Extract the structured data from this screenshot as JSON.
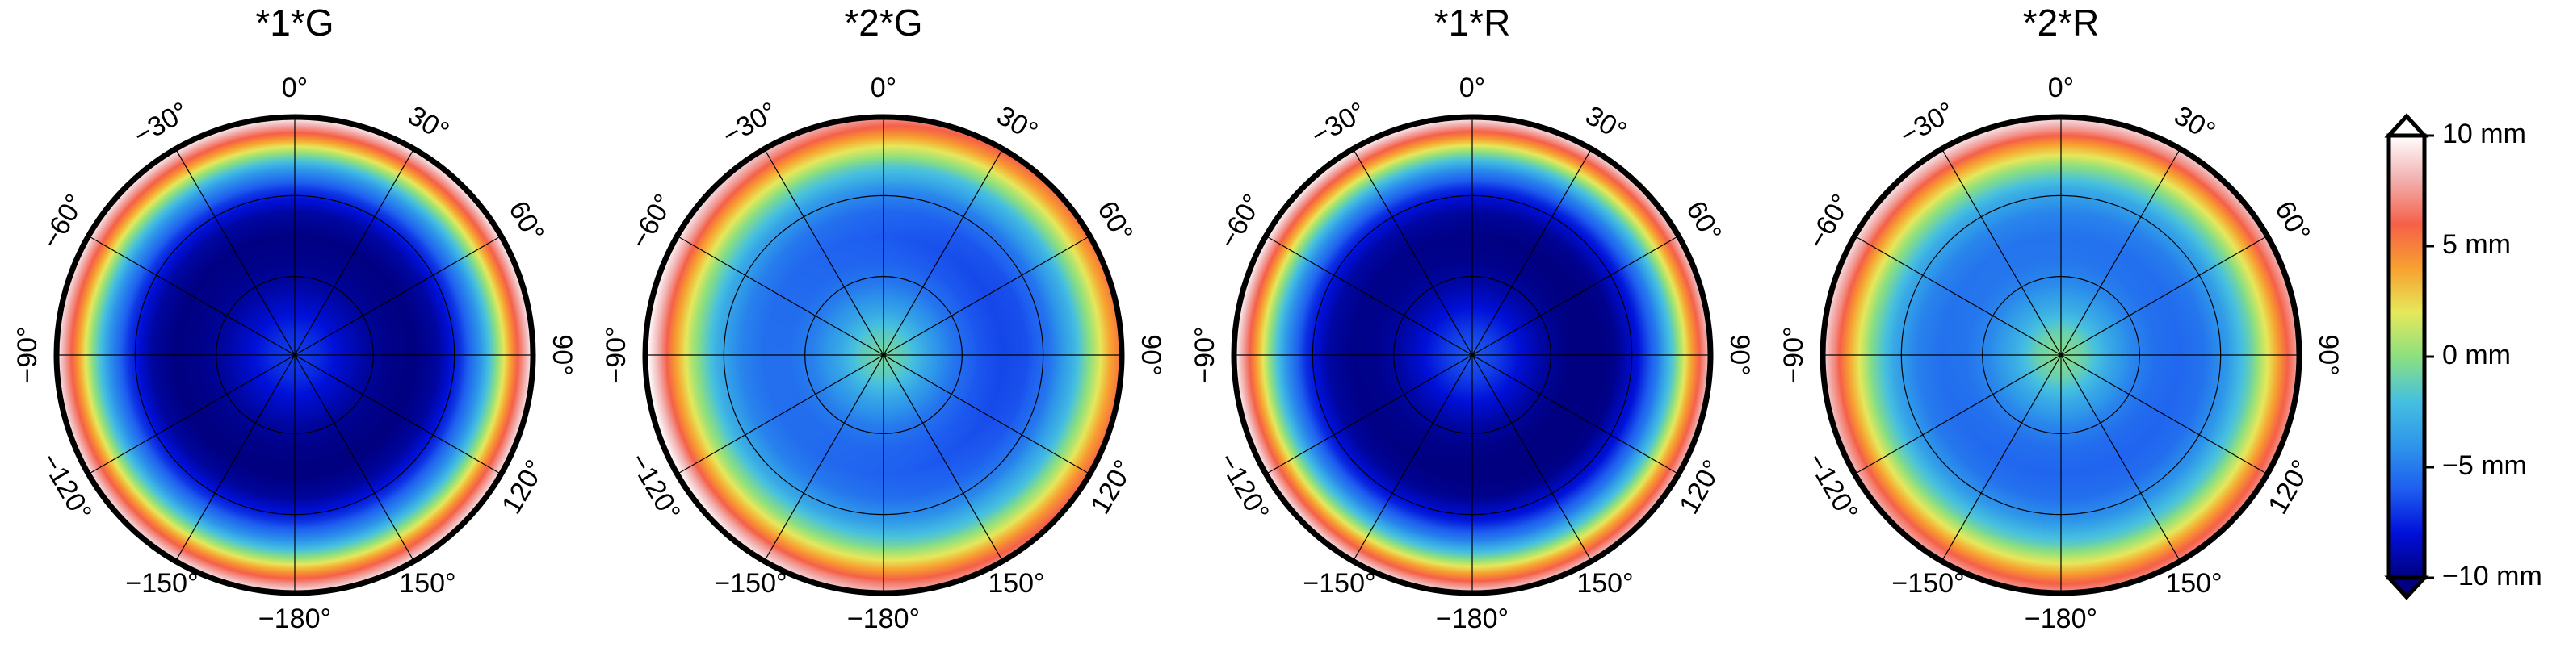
{
  "chart_data": {
    "type": "heatmap",
    "subtype": "polar",
    "panels": [
      {
        "title": "*1*G",
        "radial_profile": [
          {
            "r": 0.0,
            "v": -6.8
          },
          {
            "r": 0.1,
            "v": -7.3
          },
          {
            "r": 0.2,
            "v": -8.3
          },
          {
            "r": 0.3,
            "v": -9.3
          },
          {
            "r": 0.4,
            "v": -9.8
          },
          {
            "r": 0.5,
            "v": -10.0
          },
          {
            "r": 0.6,
            "v": -9.3
          },
          {
            "r": 0.7,
            "v": -7.0
          },
          {
            "r": 0.78,
            "v": -4.0
          },
          {
            "r": 0.85,
            "v": 0.0
          },
          {
            "r": 0.92,
            "v": 5.0
          },
          {
            "r": 1.0,
            "v": 9.8
          }
        ],
        "azimuth_variation": {
          "amplitude": 0.2,
          "peak_deg": 0
        }
      },
      {
        "title": "*2*G",
        "radial_profile": [
          {
            "r": 0.0,
            "v": -0.5
          },
          {
            "r": 0.1,
            "v": -1.5
          },
          {
            "r": 0.2,
            "v": -3.5
          },
          {
            "r": 0.3,
            "v": -5.0
          },
          {
            "r": 0.4,
            "v": -5.8
          },
          {
            "r": 0.5,
            "v": -6.0
          },
          {
            "r": 0.6,
            "v": -5.5
          },
          {
            "r": 0.7,
            "v": -4.0
          },
          {
            "r": 0.8,
            "v": -1.0
          },
          {
            "r": 0.88,
            "v": 2.5
          },
          {
            "r": 0.95,
            "v": 6.0
          },
          {
            "r": 1.0,
            "v": 8.0
          }
        ],
        "azimuth_variation": {
          "amplitude": 2.5,
          "peak_deg": -100
        }
      },
      {
        "title": "*1*R",
        "radial_profile": [
          {
            "r": 0.0,
            "v": -6.0
          },
          {
            "r": 0.1,
            "v": -6.8
          },
          {
            "r": 0.2,
            "v": -8.0
          },
          {
            "r": 0.3,
            "v": -9.2
          },
          {
            "r": 0.4,
            "v": -9.8
          },
          {
            "r": 0.5,
            "v": -10.0
          },
          {
            "r": 0.6,
            "v": -9.5
          },
          {
            "r": 0.7,
            "v": -7.5
          },
          {
            "r": 0.78,
            "v": -4.5
          },
          {
            "r": 0.85,
            "v": -0.5
          },
          {
            "r": 0.92,
            "v": 4.5
          },
          {
            "r": 1.0,
            "v": 9.5
          }
        ],
        "azimuth_variation": {
          "amplitude": 0.8,
          "peak_deg": -60
        }
      },
      {
        "title": "*2*R",
        "radial_profile": [
          {
            "r": 0.0,
            "v": 0.0
          },
          {
            "r": 0.1,
            "v": -1.0
          },
          {
            "r": 0.2,
            "v": -3.0
          },
          {
            "r": 0.3,
            "v": -4.5
          },
          {
            "r": 0.4,
            "v": -5.3
          },
          {
            "r": 0.5,
            "v": -5.5
          },
          {
            "r": 0.6,
            "v": -5.0
          },
          {
            "r": 0.7,
            "v": -3.5
          },
          {
            "r": 0.8,
            "v": -0.5
          },
          {
            "r": 0.88,
            "v": 3.0
          },
          {
            "r": 0.95,
            "v": 6.5
          },
          {
            "r": 1.0,
            "v": 8.5
          }
        ],
        "azimuth_variation": {
          "amplitude": 1.2,
          "peak_deg": -30
        }
      }
    ],
    "azimuth_tick_labels": [
      {
        "deg": 0,
        "label": "0°"
      },
      {
        "deg": 30,
        "label": "30°"
      },
      {
        "deg": 60,
        "label": "60°"
      },
      {
        "deg": 90,
        "label": "90°"
      },
      {
        "deg": 120,
        "label": "120°"
      },
      {
        "deg": 150,
        "label": "150°"
      },
      {
        "deg": 180,
        "label": "−180°"
      },
      {
        "deg": -150,
        "label": "−150°"
      },
      {
        "deg": -120,
        "label": "−120°"
      },
      {
        "deg": -90,
        "label": "−90°"
      },
      {
        "deg": -60,
        "label": "−60°"
      },
      {
        "deg": -30,
        "label": "−30°"
      }
    ],
    "spokes_every_deg": 30,
    "radial_rings": [
      0.33,
      0.67,
      1.0
    ],
    "colorbar": {
      "range": [
        -10,
        10
      ],
      "ticks": [
        {
          "value": 10,
          "label": "10 mm"
        },
        {
          "value": 5,
          "label": "5 mm"
        },
        {
          "value": 0,
          "label": "0 mm"
        },
        {
          "value": -5,
          "label": "−5 mm"
        },
        {
          "value": -10,
          "label": "−10 mm"
        }
      ],
      "extend": "both",
      "colormap": [
        {
          "v": -10,
          "c": "#000080"
        },
        {
          "v": -8,
          "c": "#0010d8"
        },
        {
          "v": -6,
          "c": "#1e5ef0"
        },
        {
          "v": -4,
          "c": "#2e96ea"
        },
        {
          "v": -2,
          "c": "#46c0e0"
        },
        {
          "v": 0,
          "c": "#8ce080"
        },
        {
          "v": 2,
          "c": "#e6e85a"
        },
        {
          "v": 4,
          "c": "#f8a030"
        },
        {
          "v": 6,
          "c": "#f56048"
        },
        {
          "v": 8,
          "c": "#f2b0b0"
        },
        {
          "v": 10,
          "c": "#ffffff"
        }
      ]
    }
  }
}
